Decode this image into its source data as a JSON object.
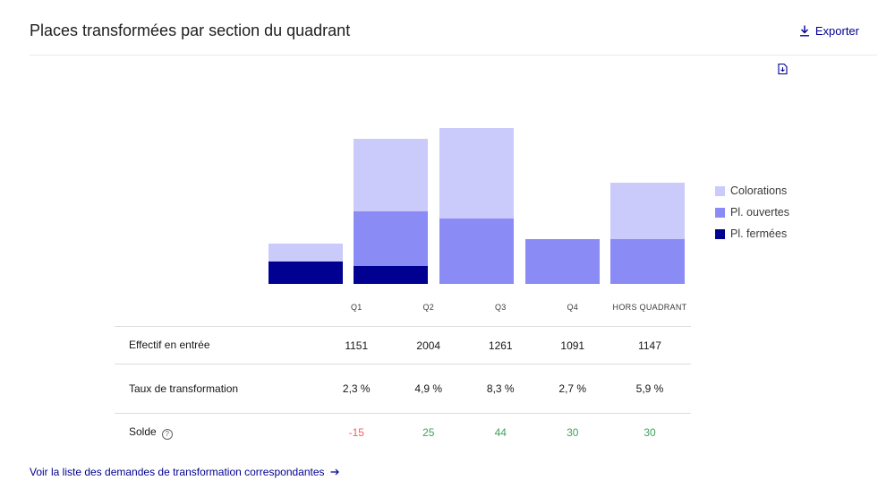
{
  "header": {
    "title": "Places transformées par section du quadrant",
    "export_label": "Exporter"
  },
  "chart_data": {
    "type": "bar",
    "stacked": true,
    "categories": [
      "Q1",
      "Q2",
      "Q3",
      "Q4",
      "HORS QUADRANT"
    ],
    "series": [
      {
        "name": "Pl. fermées",
        "color": "#000091",
        "values": [
          25,
          20,
          0,
          0,
          0
        ]
      },
      {
        "name": "Pl. ouvertes",
        "color": "#8b8bf6",
        "values": [
          0,
          61,
          73,
          50,
          50
        ]
      },
      {
        "name": "Colorations",
        "color": "#cacafb",
        "values": [
          20,
          81,
          101,
          0,
          63
        ]
      }
    ],
    "ylim": [
      0,
      180
    ],
    "grid": false,
    "legend_position": "right"
  },
  "table": {
    "columns": [
      "Q1",
      "Q2",
      "Q3",
      "Q4",
      "HORS QUADRANT"
    ],
    "rows": [
      {
        "label": "Effectif en entrée",
        "values": [
          "1151",
          "2004",
          "1261",
          "1091",
          "1147"
        ]
      },
      {
        "label": "Taux de transformation",
        "values": [
          "2,3 %",
          "4,9 %",
          "8,3 %",
          "2,7 %",
          "5,9 %"
        ]
      },
      {
        "label": "Solde",
        "values": [
          "-15",
          "25",
          "44",
          "30",
          "30"
        ]
      }
    ]
  },
  "footer": {
    "link_label": "Voir la liste des demandes de transformation correspondantes"
  }
}
